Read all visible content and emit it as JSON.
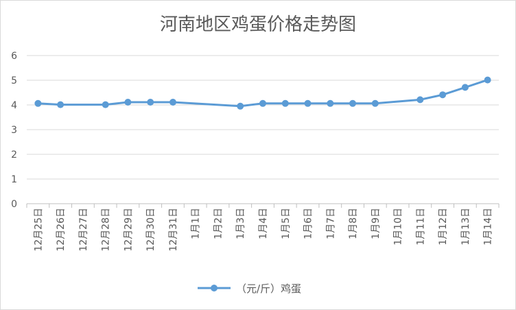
{
  "chart_data": {
    "type": "line",
    "title": "河南地区鸡蛋价格走势图",
    "xlabel": "",
    "ylabel": "",
    "ylim": [
      0,
      6
    ],
    "yticks": [
      "0",
      "1",
      "2",
      "3",
      "4",
      "5",
      "6"
    ],
    "grid": true,
    "legend_position": "bottom",
    "categories": [
      "12月25日",
      "12月26日",
      "12月27日",
      "12月28日",
      "12月29日",
      "12月30日",
      "12月31日",
      "1月1日",
      "1月2日",
      "1月3日",
      "1月4日",
      "1月5日",
      "1月6日",
      "1月7日",
      "1月8日",
      "1月9日",
      "1月10日",
      "1月11日",
      "1月12日",
      "1月13日",
      "1月14日"
    ],
    "series": [
      {
        "name": "（元/斤）鸡蛋",
        "color": "#5b9bd5",
        "values": [
          4.06,
          4.01,
          null,
          4.01,
          4.11,
          4.11,
          4.11,
          null,
          null,
          3.95,
          4.06,
          4.06,
          4.06,
          4.06,
          4.06,
          4.06,
          null,
          4.21,
          4.41,
          4.71,
          5.01
        ]
      }
    ],
    "colors": {
      "grid": "#d9d9d9",
      "axis": "#bfbfbf",
      "text": "#595959"
    }
  }
}
